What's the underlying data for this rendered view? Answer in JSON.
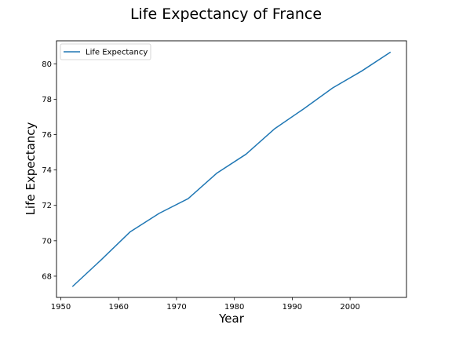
{
  "chart_data": {
    "type": "line",
    "title": "Life Expectancy of France",
    "xlabel": "Year",
    "ylabel": "Life Expectancy",
    "xlim": [
      1949.25,
      2009.75
    ],
    "ylim": [
      66.8,
      81.3
    ],
    "xticks": [
      1950,
      1960,
      1970,
      1980,
      1990,
      2000
    ],
    "yticks": [
      68,
      70,
      72,
      74,
      76,
      78,
      80
    ],
    "grid": false,
    "legend_position": "top-left",
    "series": [
      {
        "name": "Life Expectancy",
        "color": "#1f77b4",
        "x": [
          1952,
          1957,
          1962,
          1967,
          1972,
          1977,
          1982,
          1987,
          1992,
          1997,
          2002,
          2007
        ],
        "y": [
          67.41,
          68.93,
          70.51,
          71.55,
          72.38,
          73.83,
          74.89,
          76.34,
          77.46,
          78.64,
          79.59,
          80.66
        ]
      }
    ]
  }
}
